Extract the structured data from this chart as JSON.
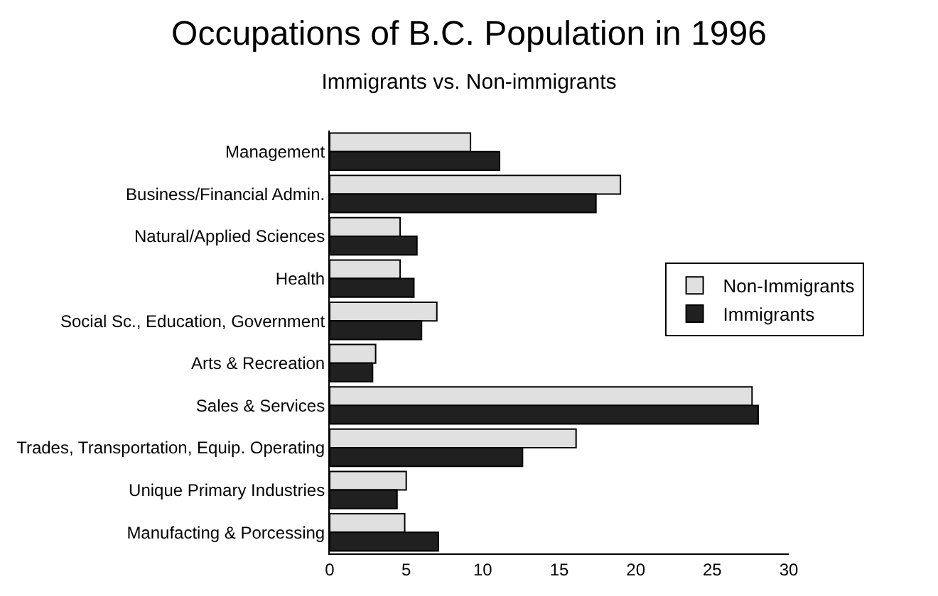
{
  "chart_data": {
    "type": "bar",
    "orientation": "horizontal",
    "title": "Occupations of B.C. Population in 1996",
    "subtitle": "Immigrants vs. Non-immigrants",
    "categories": [
      "Management",
      "Business/Financial Admin.",
      "Natural/Applied Sciences",
      "Health",
      "Social Sc., Education, Government",
      "Arts & Recreation",
      "Sales & Services",
      "Trades, Transportation, Equip. Operating",
      "Unique Primary Industries",
      "Manufacting & Porcessing"
    ],
    "series": [
      {
        "name": "Non-Immigrants",
        "color": "#e0e0e0",
        "values": [
          9.2,
          19.0,
          4.6,
          4.6,
          7.0,
          3.0,
          27.6,
          16.1,
          5.0,
          4.9
        ]
      },
      {
        "name": "Immigrants",
        "color": "#202020",
        "values": [
          11.1,
          17.4,
          5.7,
          5.5,
          6.0,
          2.8,
          28.0,
          12.6,
          4.4,
          7.1
        ]
      }
    ],
    "xlim": [
      0,
      30
    ],
    "xticks": [
      0,
      5,
      10,
      15,
      20,
      25,
      30
    ],
    "legend": "right"
  }
}
